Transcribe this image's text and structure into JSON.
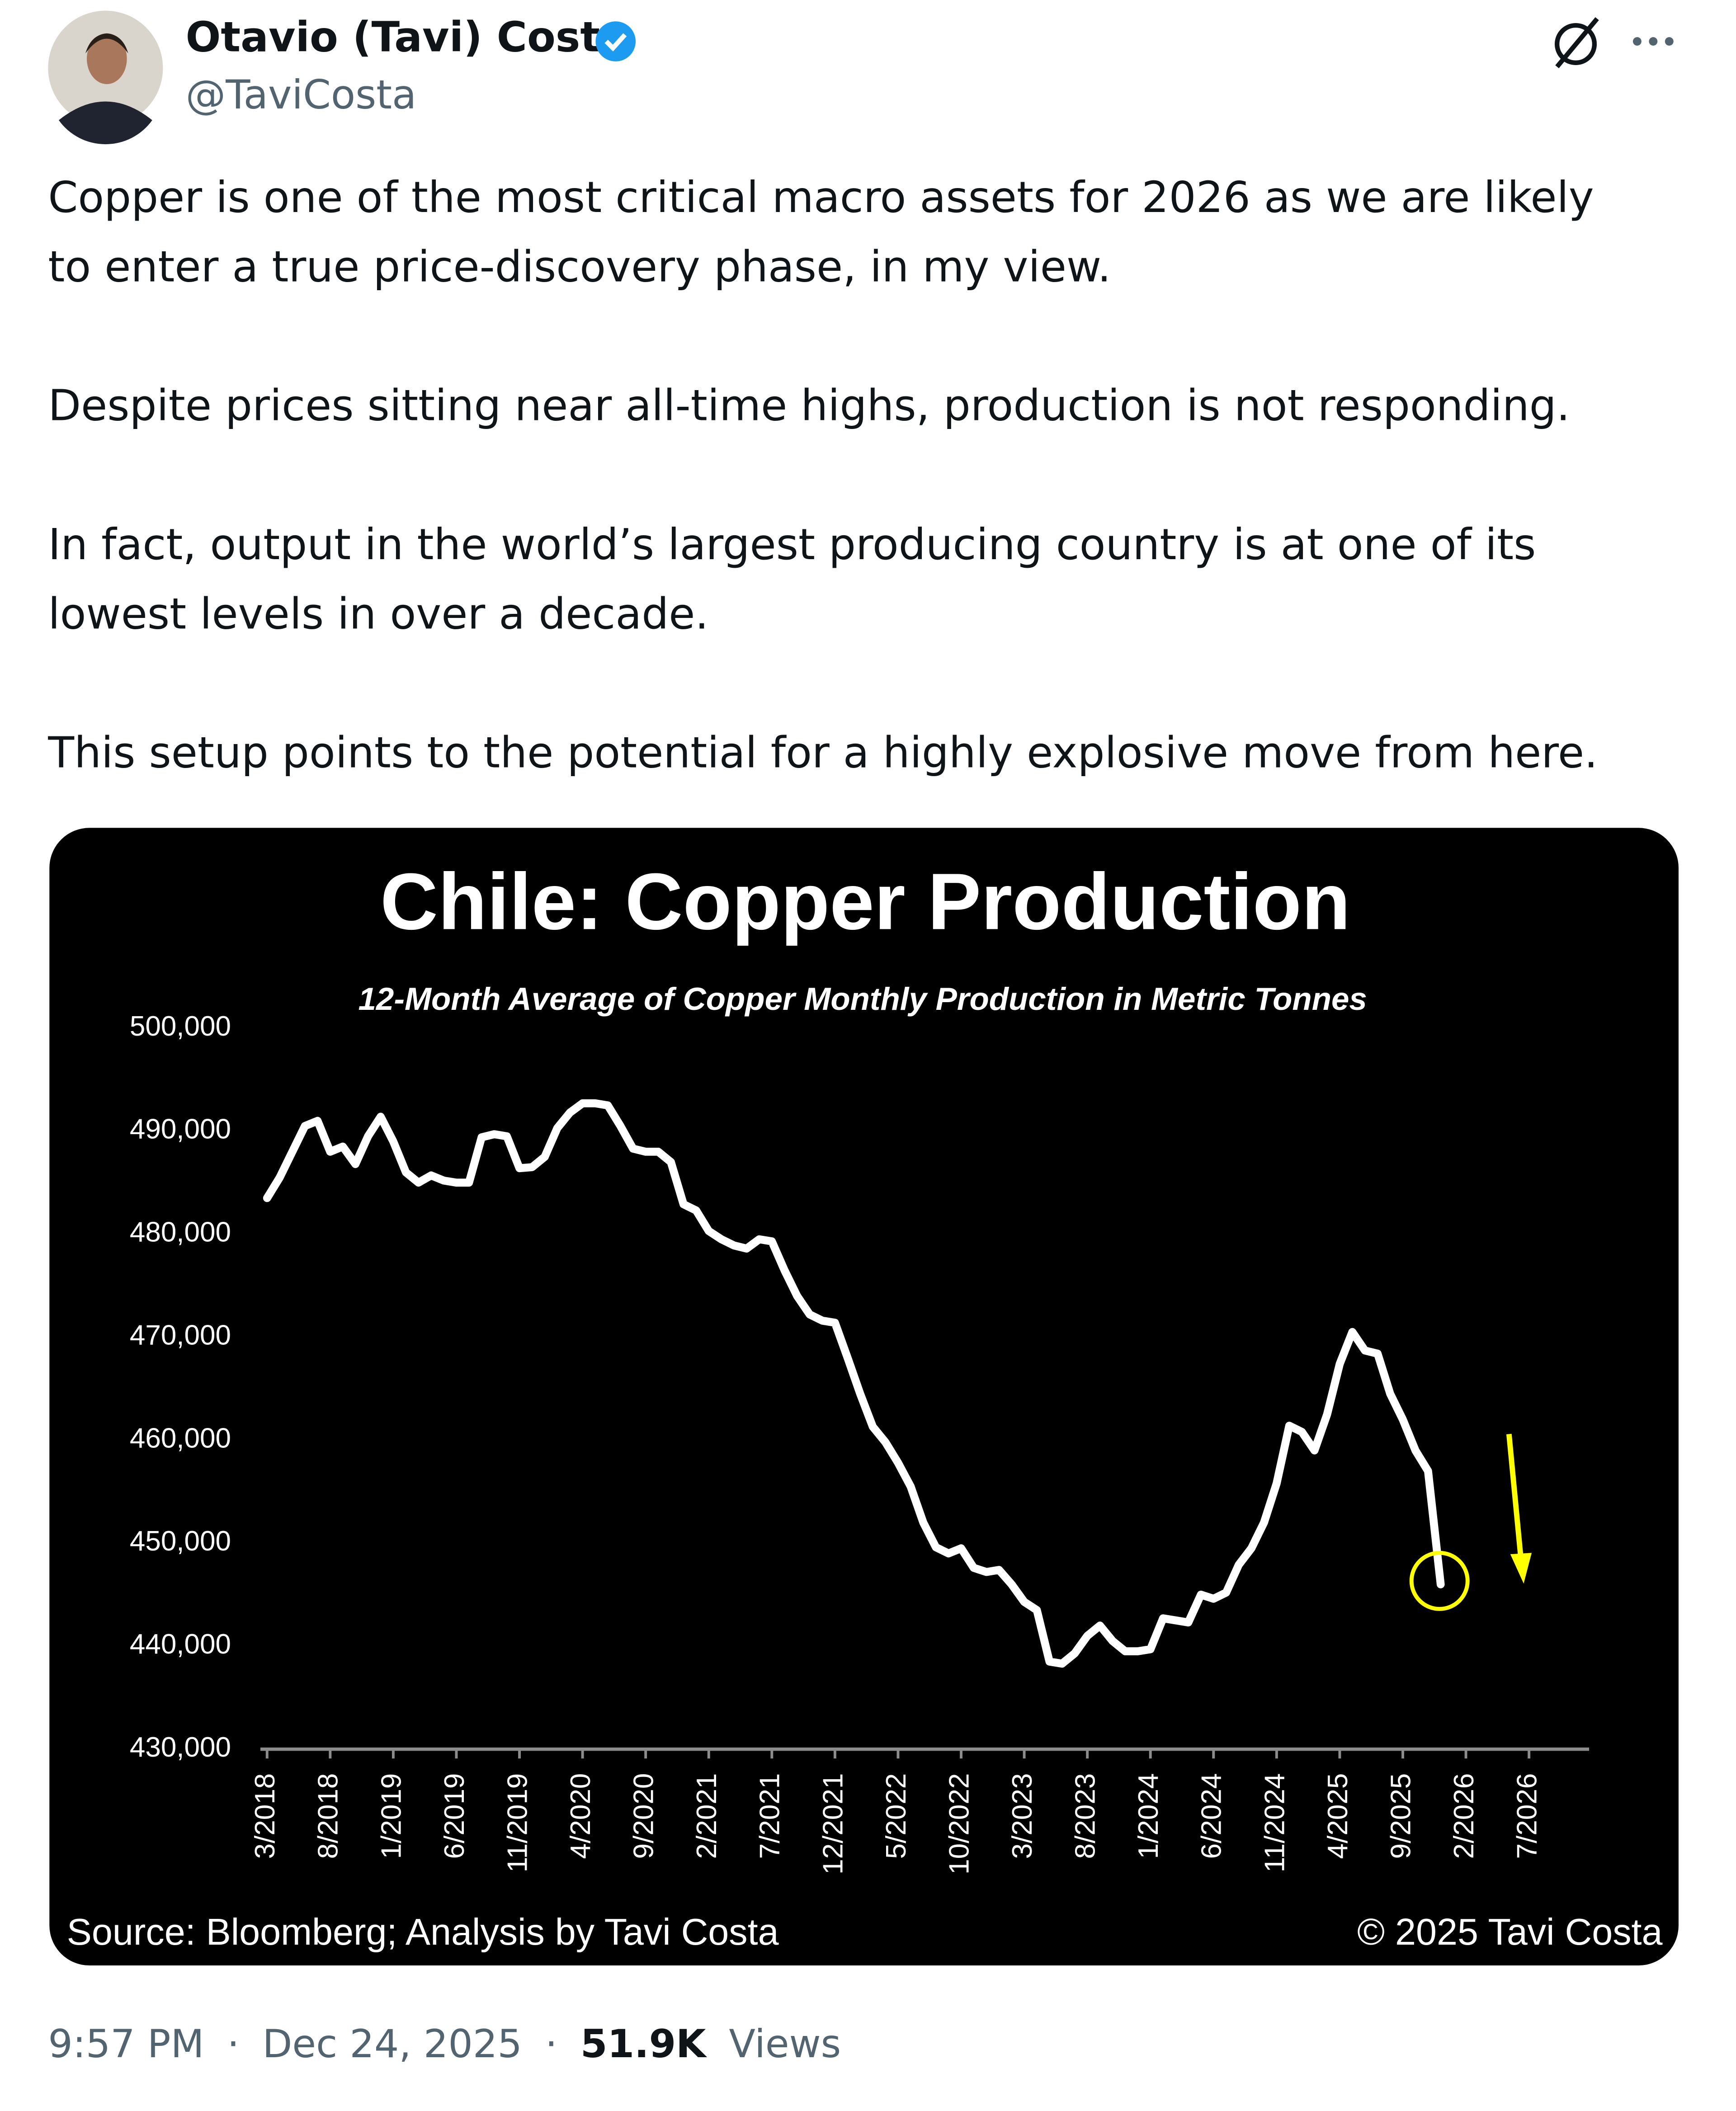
{
  "post": {
    "author_name": "Otavio (Tavi) Costa",
    "handle": "@TaviCosta",
    "paragraphs": [
      [
        "Copper is one of the most critical macro assets for 2026 as we are likely",
        "to enter a true price-discovery phase, in my view."
      ],
      [
        "Despite prices sitting near all-time highs, production is not responding."
      ],
      [
        "In fact, output in the world’s largest producing country is at one of its",
        "lowest levels in over a decade."
      ],
      [
        "This setup points to the potential for a highly explosive move from here."
      ]
    ],
    "time": "9:57 PM",
    "separator": "·",
    "date": "Dec 24, 2025",
    "views_count": "51.9K",
    "views_label": "Views"
  },
  "chart_data": {
    "type": "line",
    "title": "Chile: Copper Production",
    "subtitle": "12-Month Average of Copper Monthly Production in Metric Tonnes",
    "source": "Source: Bloomberg; Analysis by Tavi Costa",
    "copyright": "© 2025 Tavi Costa",
    "categories": [
      "3/2018",
      null,
      null,
      null,
      null,
      "8/2018",
      null,
      null,
      null,
      null,
      "1/2019",
      null,
      null,
      null,
      null,
      "6/2019",
      null,
      null,
      null,
      null,
      "11/2019",
      null,
      null,
      null,
      null,
      "4/2020",
      null,
      null,
      null,
      null,
      "9/2020",
      null,
      null,
      null,
      null,
      "2/2021",
      null,
      null,
      null,
      null,
      "7/2021",
      null,
      null,
      null,
      null,
      "12/2021",
      null,
      null,
      null,
      null,
      "5/2022",
      null,
      null,
      null,
      null,
      "10/2022",
      null,
      null,
      null,
      null,
      "3/2023",
      null,
      null,
      null,
      null,
      "8/2023",
      null,
      null,
      null,
      null,
      "1/2024",
      null,
      null,
      null,
      null,
      "6/2024",
      null,
      null,
      null,
      null,
      "11/2024",
      null,
      null,
      null,
      null,
      "4/2025",
      null,
      null,
      null,
      null,
      "9/2025",
      null,
      null,
      null,
      null,
      "2/2026",
      null,
      null,
      null,
      null,
      "7/2026"
    ],
    "series": [
      {
        "name": "Copper Production",
        "color": "#ffffff",
        "values": [
          483500,
          485500,
          488000,
          490500,
          491000,
          488000,
          488500,
          486800,
          489500,
          491400,
          489000,
          486000,
          485000,
          485700,
          485200,
          485000,
          485000,
          489400,
          489700,
          489500,
          486400,
          486500,
          487500,
          490300,
          491800,
          492700,
          492700,
          492500,
          490500,
          488300,
          488000,
          488000,
          487000,
          482900,
          482300,
          480300,
          479500,
          478900,
          478600,
          479500,
          479300,
          476500,
          474000,
          472200,
          471600,
          471400,
          468000,
          464500,
          461300,
          459800,
          457800,
          455500,
          452000,
          449600,
          449000,
          449500,
          447600,
          447200,
          447400,
          446000,
          444300,
          443500,
          438500,
          438300,
          439300,
          441000,
          442000,
          440500,
          439500,
          439500,
          439700,
          442700,
          442500,
          442300,
          445000,
          444600,
          445200,
          447900,
          449500,
          452000,
          455800,
          461400,
          460800,
          459000,
          462500,
          467400,
          470500,
          468700,
          468400,
          464500,
          462000,
          459000,
          457000,
          446000,
          null,
          null,
          null,
          null,
          null,
          null,
          null
        ]
      }
    ],
    "ylim": [
      430000,
      500000
    ],
    "yticks": [
      {
        "value": 430000,
        "label": "430,000"
      },
      {
        "value": 440000,
        "label": "440,000"
      },
      {
        "value": 450000,
        "label": "450,000"
      },
      {
        "value": 460000,
        "label": "460,000"
      },
      {
        "value": 470000,
        "label": "470,000"
      },
      {
        "value": 480000,
        "label": "480,000"
      },
      {
        "value": 490000,
        "label": "490,000"
      },
      {
        "value": 500000,
        "label": "500,000"
      }
    ],
    "grid": false
  }
}
